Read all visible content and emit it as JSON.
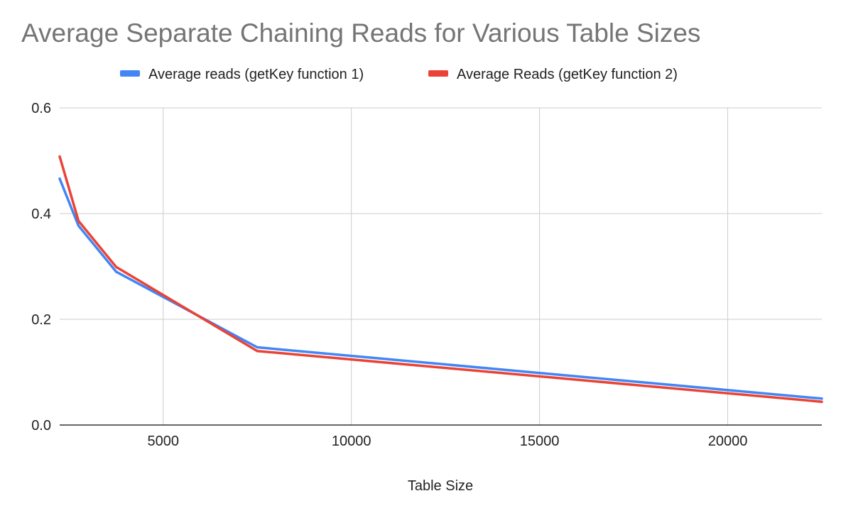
{
  "chart_data": {
    "type": "line",
    "title": "Average Separate Chaining Reads for Various Table Sizes",
    "xlabel": "Table Size",
    "ylabel": "",
    "xlim": [
      2250,
      22500
    ],
    "ylim": [
      0,
      0.6
    ],
    "xticks": [
      5000,
      10000,
      15000,
      20000
    ],
    "xtick_labels": [
      "5000",
      "10000",
      "15000",
      "20000"
    ],
    "yticks": [
      0,
      0.2,
      0.4,
      0.6
    ],
    "ytick_labels": [
      "0.0",
      "0.2",
      "0.4",
      "0.6"
    ],
    "grid": true,
    "legend_position": "top",
    "series": [
      {
        "name": "Average reads (getKey function 1)",
        "color": "#4285F4",
        "x": [
          2250,
          2750,
          3750,
          7500,
          22500
        ],
        "y": [
          0.466,
          0.377,
          0.29,
          0.147,
          0.05
        ]
      },
      {
        "name": "Average Reads (getKey function 2)",
        "color": "#EA4335",
        "x": [
          2250,
          2750,
          3750,
          7500,
          22500
        ],
        "y": [
          0.508,
          0.386,
          0.299,
          0.14,
          0.044
        ]
      }
    ]
  }
}
